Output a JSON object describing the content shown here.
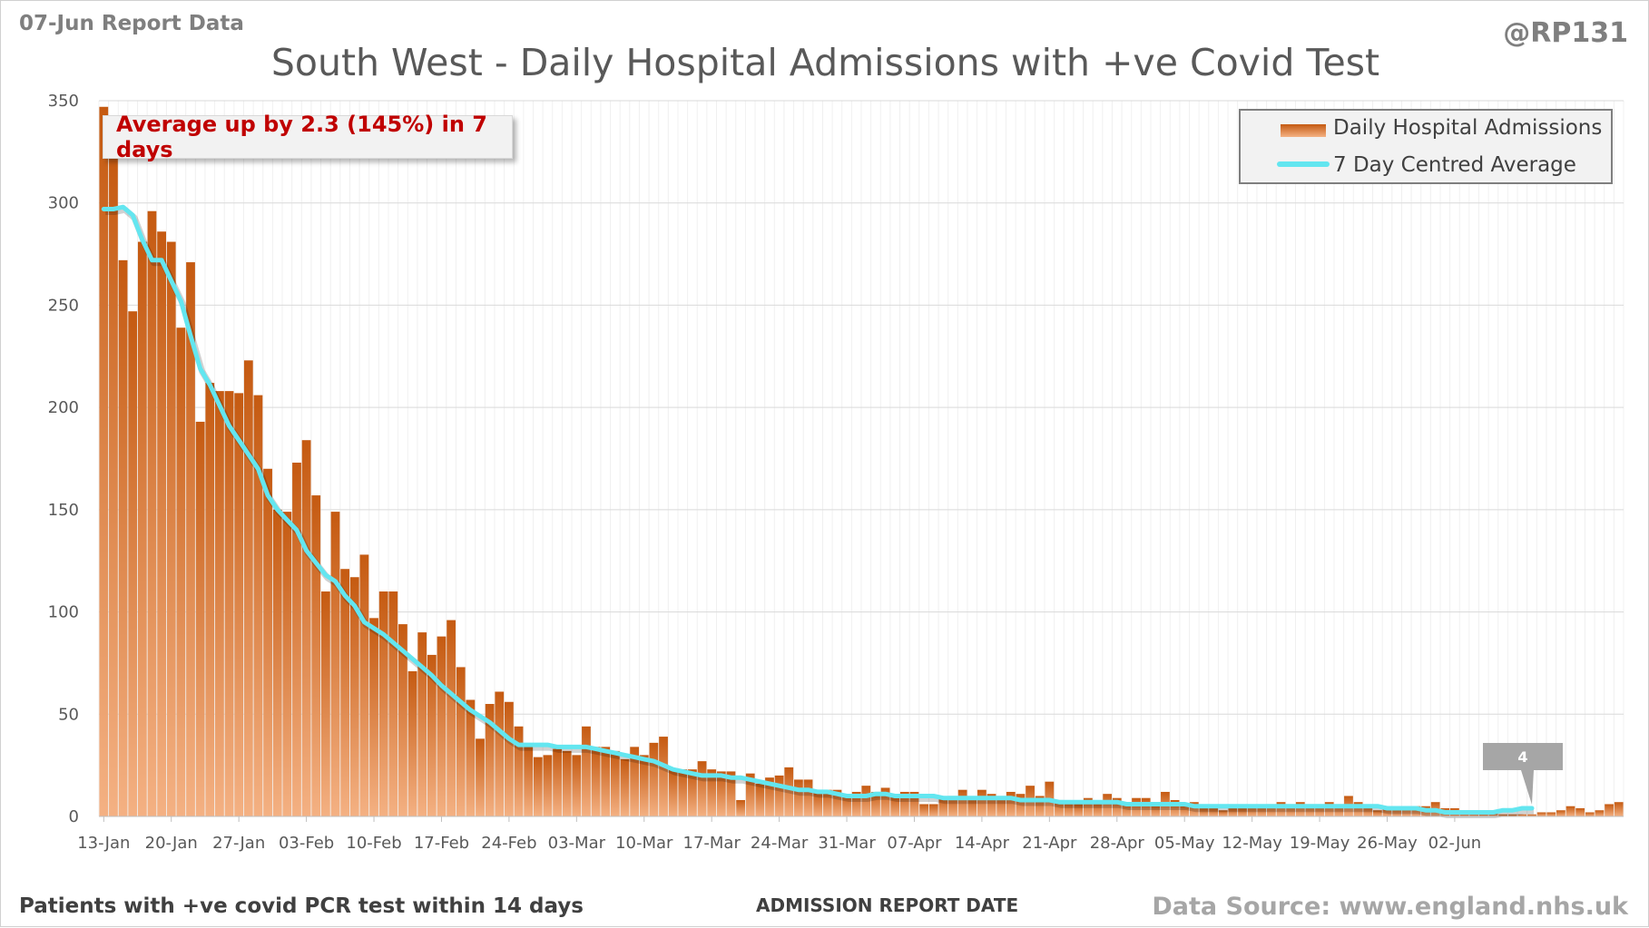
{
  "header": {
    "report_label": "07-Jun Report Data",
    "handle": "@RP131",
    "title": "South West - Daily Hospital Admissions with +ve Covid Test"
  },
  "footer": {
    "left_note": "Patients with +ve covid PCR test within 14 days",
    "xlabel": "ADMISSION REPORT DATE",
    "source": "Data Source: www.england.nhs.uk"
  },
  "annotation": "Average up by 2.3 (145%) in 7 days",
  "legend": {
    "bar_label": "Daily Hospital Admissions",
    "line_label": "7 Day Centred Average"
  },
  "colors": {
    "bar_top": "#c55a11",
    "bar_bottom": "#f4b183",
    "line": "#63e6f0",
    "annotation_text": "#c00000",
    "callout": "#a6a6a6"
  },
  "chart_data": {
    "type": "bar",
    "title": "South West - Daily Hospital Admissions with +ve Covid Test",
    "xlabel": "ADMISSION REPORT DATE",
    "ylabel": "",
    "ylim": [
      0,
      350
    ],
    "yticks": [
      0,
      50,
      100,
      150,
      200,
      250,
      300,
      350
    ],
    "grid": true,
    "legend_position": "top-right",
    "start_date": "13-Jan",
    "x_tick_labels": [
      "13-Jan",
      "20-Jan",
      "27-Jan",
      "03-Feb",
      "10-Feb",
      "17-Feb",
      "24-Feb",
      "03-Mar",
      "10-Mar",
      "17-Mar",
      "24-Mar",
      "31-Mar",
      "07-Apr",
      "14-Apr",
      "21-Apr",
      "28-Apr",
      "05-May",
      "12-May",
      "19-May",
      "26-May",
      "02-Jun"
    ],
    "series": [
      {
        "name": "Daily Hospital Admissions",
        "type": "bar",
        "values": [
          347,
          325,
          272,
          247,
          281,
          296,
          286,
          281,
          239,
          271,
          193,
          212,
          208,
          208,
          207,
          223,
          206,
          170,
          150,
          149,
          173,
          184,
          157,
          110,
          149,
          121,
          117,
          128,
          97,
          110,
          110,
          94,
          71,
          90,
          79,
          88,
          96,
          73,
          57,
          38,
          55,
          61,
          56,
          44,
          35,
          29,
          30,
          33,
          32,
          30,
          44,
          34,
          34,
          32,
          28,
          34,
          30,
          36,
          39,
          23,
          23,
          23,
          27,
          23,
          22,
          22,
          8,
          21,
          16,
          19,
          20,
          24,
          18,
          18,
          12,
          13,
          13,
          11,
          12,
          15,
          12,
          14,
          10,
          12,
          12,
          6,
          6,
          9,
          10,
          13,
          9,
          13,
          11,
          10,
          12,
          11,
          15,
          10,
          17,
          8,
          7,
          6,
          9,
          7,
          11,
          9,
          7,
          9,
          9,
          6,
          12,
          8,
          6,
          7,
          4,
          4,
          3,
          4,
          4,
          5,
          5,
          6,
          7,
          6,
          7,
          6,
          6,
          7,
          6,
          10,
          7,
          5,
          3,
          4,
          4,
          5,
          5,
          5,
          7,
          4,
          4,
          3,
          3,
          2,
          2,
          1,
          1,
          1,
          1,
          2,
          2,
          3,
          5,
          4,
          2,
          3,
          6,
          7
        ]
      },
      {
        "name": "7 Day Centred Average",
        "type": "line",
        "values": [
          297,
          297,
          298,
          294,
          282,
          272,
          272,
          262,
          252,
          235,
          219,
          211,
          201,
          191,
          184,
          177,
          170,
          157,
          150,
          145,
          140,
          130,
          124,
          118,
          115,
          108,
          103,
          95,
          92,
          89,
          85,
          81,
          77,
          73,
          69,
          64,
          60,
          56,
          52,
          49,
          46,
          42,
          38,
          35,
          35,
          35,
          35,
          34,
          34,
          34,
          34,
          33,
          32,
          31,
          30,
          29,
          28,
          27,
          25,
          23,
          22,
          21,
          20,
          20,
          20,
          19,
          19,
          18,
          17,
          16,
          15,
          14,
          13,
          13,
          12,
          12,
          11,
          10,
          10,
          10,
          11,
          11,
          10,
          10,
          10,
          10,
          10,
          9,
          9,
          9,
          9,
          9,
          9,
          9,
          9,
          8,
          8,
          8,
          8,
          7,
          7,
          7,
          7,
          7,
          7,
          7,
          6,
          6,
          6,
          6,
          6,
          6,
          6,
          5,
          5,
          5,
          5,
          5,
          5,
          5,
          5,
          5,
          5,
          5,
          5,
          5,
          5,
          5,
          5,
          5,
          5,
          5,
          5,
          4,
          4,
          4,
          4,
          3,
          3,
          2,
          2,
          2,
          2,
          2,
          2,
          3,
          3,
          4,
          4
        ]
      }
    ],
    "callout_value": "4"
  }
}
